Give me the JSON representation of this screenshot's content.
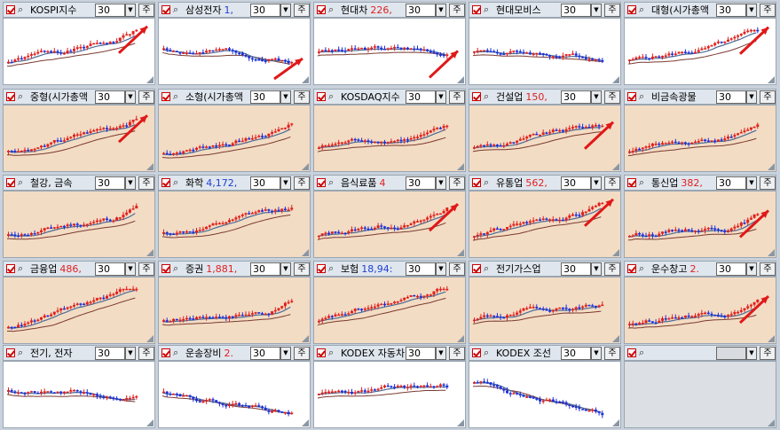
{
  "colors": {
    "header_bg": "#dfe6ee",
    "chart_white": "#ffffff",
    "chart_beige": "#f3dcc4",
    "candle_up": "#e0201c",
    "candle_down": "#1a2fd8",
    "ma_blue": "#4a6c98",
    "ma_brown": "#7a3a30",
    "arrow": "#e01818",
    "value_red": "#e02020",
    "value_blue": "#2040d0"
  },
  "panels": [
    {
      "name": "KOSPI지수",
      "value": "",
      "value_color": "",
      "period": "30",
      "btn": "주",
      "bg": "white",
      "arrow": true,
      "seed": 1,
      "trend": 0.55
    },
    {
      "name": "삼성전자",
      "value": "1,",
      "value_color": "blue",
      "period": "30",
      "btn": "주",
      "bg": "white",
      "arrow": true,
      "seed": 2,
      "trend": -0.25
    },
    {
      "name": "현대차",
      "value": "226,",
      "value_color": "red",
      "period": "30",
      "btn": "주",
      "bg": "white",
      "arrow": true,
      "seed": 3,
      "trend": -0.1
    },
    {
      "name": "현대모비스",
      "value": "",
      "value_color": "",
      "period": "30",
      "btn": "주",
      "bg": "white",
      "arrow": false,
      "seed": 4,
      "trend": -0.15
    },
    {
      "name": "대형(시가총액",
      "value": "",
      "value_color": "",
      "period": "30",
      "btn": "주",
      "bg": "white",
      "arrow": true,
      "seed": 5,
      "trend": 0.5
    },
    {
      "name": "중형(시가총액",
      "value": "",
      "value_color": "",
      "period": "30",
      "btn": "주",
      "bg": "beige",
      "arrow": true,
      "seed": 6,
      "trend": 0.7
    },
    {
      "name": "소형(시가총액",
      "value": "",
      "value_color": "",
      "period": "30",
      "btn": "주",
      "bg": "beige",
      "arrow": false,
      "seed": 7,
      "trend": 0.8
    },
    {
      "name": "KOSDAQ지수",
      "value": "",
      "value_color": "",
      "period": "30",
      "btn": "주",
      "bg": "beige",
      "arrow": false,
      "seed": 8,
      "trend": 0.45
    },
    {
      "name": "건설업",
      "value": "150,",
      "value_color": "red",
      "period": "30",
      "btn": "주",
      "bg": "beige",
      "arrow": true,
      "seed": 9,
      "trend": 0.4
    },
    {
      "name": "비금속광물",
      "value": "",
      "value_color": "",
      "period": "30",
      "btn": "주",
      "bg": "beige",
      "arrow": false,
      "seed": 10,
      "trend": 0.6
    },
    {
      "name": "철강, 금속",
      "value": "",
      "value_color": "",
      "period": "30",
      "btn": "주",
      "bg": "beige",
      "arrow": false,
      "seed": 11,
      "trend": 0.6
    },
    {
      "name": "화학",
      "value": "4,172,",
      "value_color": "blue",
      "period": "30",
      "btn": "주",
      "bg": "beige",
      "arrow": false,
      "seed": 12,
      "trend": 0.45
    },
    {
      "name": "음식료품",
      "value": "4",
      "value_color": "red",
      "period": "30",
      "btn": "주",
      "bg": "beige",
      "arrow": true,
      "seed": 13,
      "trend": 0.6
    },
    {
      "name": "유통업",
      "value": "562,",
      "value_color": "red",
      "period": "30",
      "btn": "주",
      "bg": "beige",
      "arrow": true,
      "seed": 14,
      "trend": 0.6
    },
    {
      "name": "통신업",
      "value": "382,",
      "value_color": "red",
      "period": "30",
      "btn": "주",
      "bg": "beige",
      "arrow": true,
      "seed": 15,
      "trend": 0.55
    },
    {
      "name": "금융업",
      "value": "486,",
      "value_color": "red",
      "period": "30",
      "btn": "주",
      "bg": "beige",
      "arrow": false,
      "seed": 16,
      "trend": 0.8
    },
    {
      "name": "증권",
      "value": "1,881,",
      "value_color": "red",
      "period": "30",
      "btn": "주",
      "bg": "beige",
      "arrow": false,
      "seed": 17,
      "trend": 0.6
    },
    {
      "name": "보험",
      "value": "18,94:",
      "value_color": "blue",
      "period": "30",
      "btn": "주",
      "bg": "beige",
      "arrow": false,
      "seed": 18,
      "trend": 0.6
    },
    {
      "name": "전기가스업",
      "value": "",
      "value_color": "",
      "period": "30",
      "btn": "주",
      "bg": "beige",
      "arrow": false,
      "seed": 19,
      "trend": 0.5
    },
    {
      "name": "운수창고",
      "value": "2.",
      "value_color": "red",
      "period": "30",
      "btn": "주",
      "bg": "beige",
      "arrow": true,
      "seed": 20,
      "trend": 0.7
    },
    {
      "name": "전기, 전자",
      "value": "",
      "value_color": "",
      "period": "30",
      "btn": "주",
      "bg": "white",
      "arrow": false,
      "seed": 21,
      "trend": -0.35
    },
    {
      "name": "운송장비",
      "value": "2.",
      "value_color": "red",
      "period": "30",
      "btn": "주",
      "bg": "white",
      "arrow": false,
      "seed": 22,
      "trend": -0.3
    },
    {
      "name": "KODEX 자동차",
      "value": "",
      "value_color": "",
      "period": "30",
      "btn": "주",
      "bg": "white",
      "arrow": false,
      "seed": 23,
      "trend": 0.0
    },
    {
      "name": "KODEX 조선",
      "value": "",
      "value_color": "",
      "period": "30",
      "btn": "주",
      "bg": "white",
      "arrow": false,
      "seed": 24,
      "trend": -0.7
    },
    {
      "name": "",
      "value": "",
      "value_color": "",
      "period": "",
      "btn": "주",
      "bg": "empty",
      "arrow": false,
      "seed": 25,
      "trend": 0
    }
  ]
}
